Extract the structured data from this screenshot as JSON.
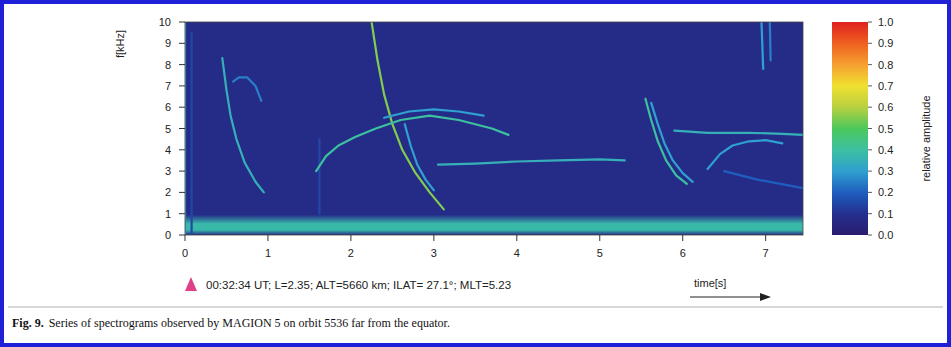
{
  "chart_data": {
    "type": "spectrogram",
    "caption_label": "Fig. 9.",
    "caption": "Series of spectrograms observed by MAGION 5 on orbit 5536 far from the equator.",
    "annotation": "00:32:34 UT; L=2.35; ALT=5660 km; ILAT= 27.1°; MLT=5.23",
    "xlabel": "time[s]",
    "ylabel": "f[kHz]",
    "xlim": [
      0,
      7.45
    ],
    "xticks": [
      0,
      1,
      2,
      3,
      4,
      5,
      6,
      7
    ],
    "ylim": [
      0,
      10
    ],
    "yticks": [
      0,
      1,
      2,
      3,
      4,
      5,
      6,
      7,
      8,
      9,
      10
    ],
    "background_amplitude": 0.08,
    "background_band": {
      "f": [
        0,
        0.95
      ],
      "amplitude": 0.38
    },
    "colorbar": {
      "label": "relative amplitude",
      "range": [
        0,
        1
      ],
      "ticks": [
        {
          "value": 1,
          "label": "1.0"
        },
        0.9,
        0.8,
        0.7,
        0.6,
        0.5,
        0.4,
        0.3,
        0.2,
        0.1,
        {
          "value": 0,
          "label": "0.0"
        }
      ]
    },
    "series": [
      {
        "x": [
          0,
          0
        ],
        "values": [
          0,
          10
        ],
        "amplitude": 0.3
      },
      {
        "x": [
          0.08,
          0.08
        ],
        "values": [
          0,
          9.5
        ],
        "amplitude": 0.15
      },
      {
        "x": [
          1.62,
          1.62
        ],
        "values": [
          1,
          4.5
        ],
        "amplitude": 0.15
      },
      {
        "x": [
          0.45,
          0.5,
          0.55,
          0.62,
          0.72,
          0.85,
          0.95
        ],
        "values": [
          8.3,
          6.8,
          5.6,
          4.5,
          3.4,
          2.5,
          2.0
        ],
        "amplitude": 0.35
      },
      {
        "x": [
          0.58,
          0.65,
          0.75,
          0.85,
          0.92
        ],
        "values": [
          7.2,
          7.4,
          7.4,
          7.0,
          6.3
        ],
        "amplitude": 0.25
      },
      {
        "x": [
          2.25,
          2.32,
          2.4,
          2.5,
          2.62,
          2.78,
          2.95,
          3.12
        ],
        "values": [
          10,
          8.2,
          6.6,
          5.2,
          4.0,
          2.9,
          2.0,
          1.2
        ],
        "amplitude": 0.55
      },
      {
        "x": [
          1.58,
          1.7,
          1.85,
          2.05,
          2.3,
          2.6,
          2.95,
          3.3,
          3.7,
          3.9
        ],
        "values": [
          3.0,
          3.7,
          4.2,
          4.6,
          5.0,
          5.4,
          5.6,
          5.4,
          5.0,
          4.7
        ],
        "amplitude": 0.4
      },
      {
        "x": [
          2.4,
          2.7,
          3.0,
          3.3,
          3.6
        ],
        "values": [
          5.5,
          5.8,
          5.9,
          5.8,
          5.6
        ],
        "amplitude": 0.3
      },
      {
        "x": [
          2.65,
          2.72,
          2.8,
          2.9,
          3.0
        ],
        "values": [
          5.2,
          4.2,
          3.3,
          2.6,
          2.1
        ],
        "amplitude": 0.3
      },
      {
        "x": [
          3.05,
          3.5,
          4.0,
          4.5,
          5.0,
          5.3
        ],
        "values": [
          3.3,
          3.35,
          3.45,
          3.5,
          3.55,
          3.5
        ],
        "amplitude": 0.35
      },
      {
        "x": [
          5.55,
          5.62,
          5.7,
          5.8,
          5.92,
          6.05
        ],
        "values": [
          6.4,
          5.4,
          4.4,
          3.5,
          2.8,
          2.4
        ],
        "amplitude": 0.4
      },
      {
        "x": [
          5.62,
          5.7,
          5.78,
          5.88,
          6.0,
          6.12
        ],
        "values": [
          6.2,
          5.2,
          4.3,
          3.5,
          2.9,
          2.5
        ],
        "amplitude": 0.3
      },
      {
        "x": [
          5.9,
          6.3,
          6.8,
          7.2,
          7.45
        ],
        "values": [
          4.9,
          4.8,
          4.8,
          4.75,
          4.7
        ],
        "amplitude": 0.35
      },
      {
        "x": [
          6.3,
          6.45,
          6.6,
          6.8,
          7.0,
          7.2
        ],
        "values": [
          3.1,
          3.8,
          4.2,
          4.4,
          4.45,
          4.3
        ],
        "amplitude": 0.3
      },
      {
        "x": [
          6.95,
          6.97
        ],
        "values": [
          10,
          7.8
        ],
        "amplitude": 0.3
      },
      {
        "x": [
          7.05,
          7.06
        ],
        "values": [
          10,
          8.2
        ],
        "amplitude": 0.25
      },
      {
        "x": [
          6.5,
          6.9,
          7.45
        ],
        "values": [
          3.0,
          2.6,
          2.2
        ],
        "amplitude": 0.2
      }
    ]
  }
}
